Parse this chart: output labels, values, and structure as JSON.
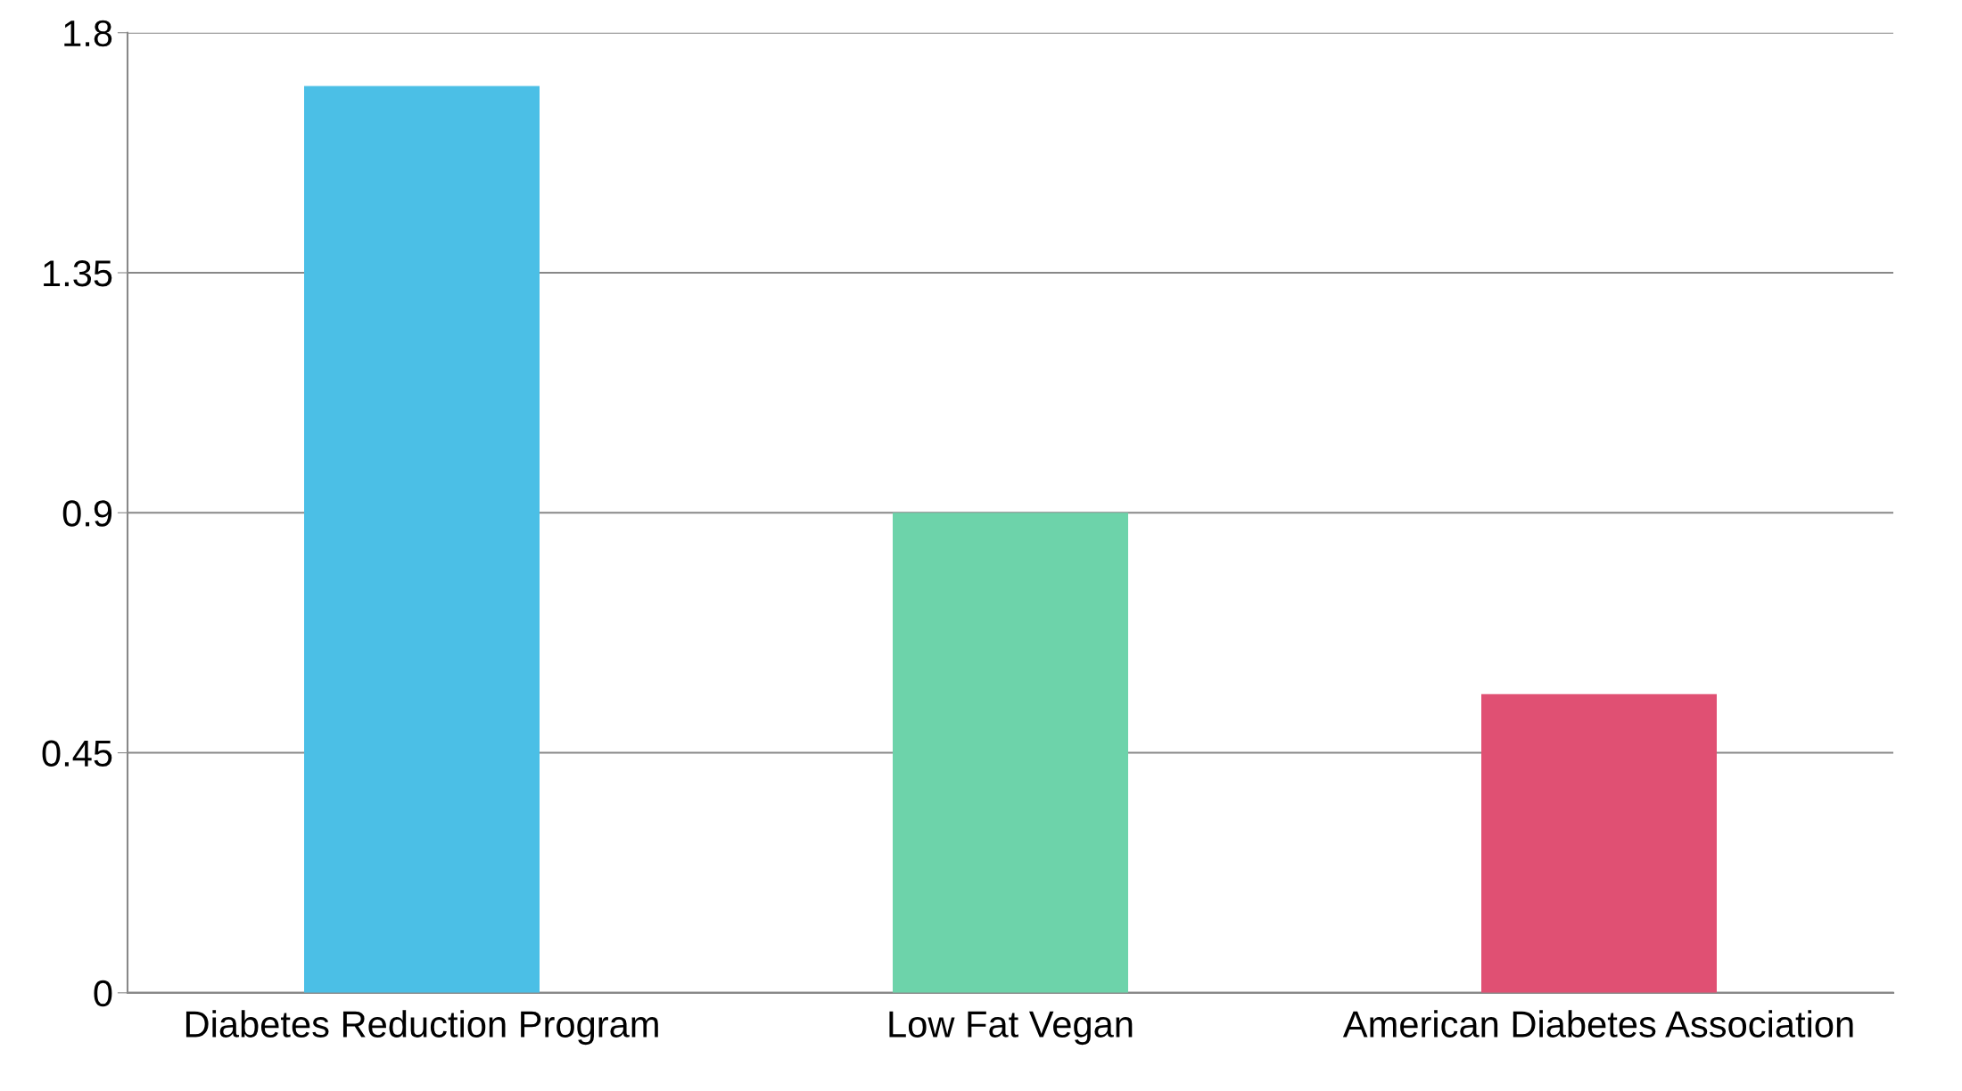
{
  "chart_data": {
    "type": "bar",
    "categories": [
      "Diabetes Reduction Program",
      "Low Fat Vegan",
      "American Diabetes Association"
    ],
    "values": [
      1.7,
      0.9,
      0.56
    ],
    "colors": [
      "#4bbfe6",
      "#6dd3aa",
      "#e05073"
    ],
    "ylim": [
      0,
      1.8
    ],
    "yticks": [
      0,
      0.45,
      0.9,
      1.35,
      1.8
    ],
    "grid": "y",
    "legend": false
  }
}
